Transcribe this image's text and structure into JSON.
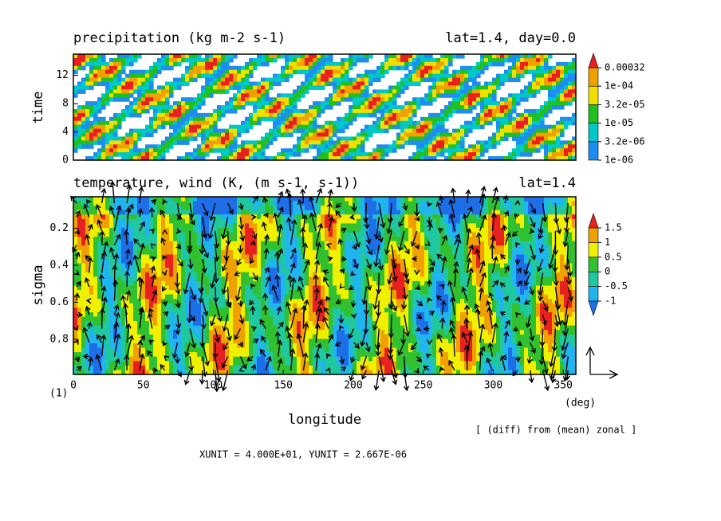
{
  "chart_data": [
    {
      "type": "contour",
      "title": "precipitation (kg m-2 s-1)",
      "annotation": "lat=1.4, day=0.0",
      "ylabel": "time",
      "xlim": [
        0,
        359
      ],
      "ylim": [
        0,
        15
      ],
      "yticks": [
        0,
        4,
        8,
        12
      ],
      "levels": [
        {
          "value": 1e-06,
          "label": "1e-06"
        },
        {
          "value": 3.2e-06,
          "label": "3.2e-06"
        },
        {
          "value": 1e-05,
          "label": "1e-05"
        },
        {
          "value": 3.2e-05,
          "label": "3.2e-05"
        },
        {
          "value": 0.0001,
          "label": "1e-04"
        },
        0.00032
      ],
      "colors": [
        "#1e8cf0",
        "#00c8c8",
        "#20c020",
        "#f0e000",
        "#f0a000",
        "#e82020"
      ]
    },
    {
      "type": "contour-vector",
      "title": "temperature, wind (K, (m s-1, s-1))",
      "annotation": "lat=1.4",
      "ylabel": "sigma",
      "xlabel": "longitude",
      "xunit": "(deg)",
      "frame_label": "(1)",
      "xlim": [
        0,
        359
      ],
      "xticks": [
        0,
        50,
        100,
        150,
        200,
        250,
        300,
        350
      ],
      "ylim": [
        0.99,
        0.03
      ],
      "yticks": [
        0.2,
        0.4,
        0.6,
        0.8
      ],
      "levels": [
        -1,
        -0.5,
        0,
        0.5,
        1,
        1.5
      ],
      "colors": [
        "#1e6ee8",
        "#20b4f0",
        "#20c8a0",
        "#30c030",
        "#f0f000",
        "#f0a000",
        "#e82020"
      ],
      "note": "[ (diff) from (mean) zonal ]",
      "units": "XUNIT = 4.000E+01, YUNIT = 2.667E-06"
    }
  ]
}
